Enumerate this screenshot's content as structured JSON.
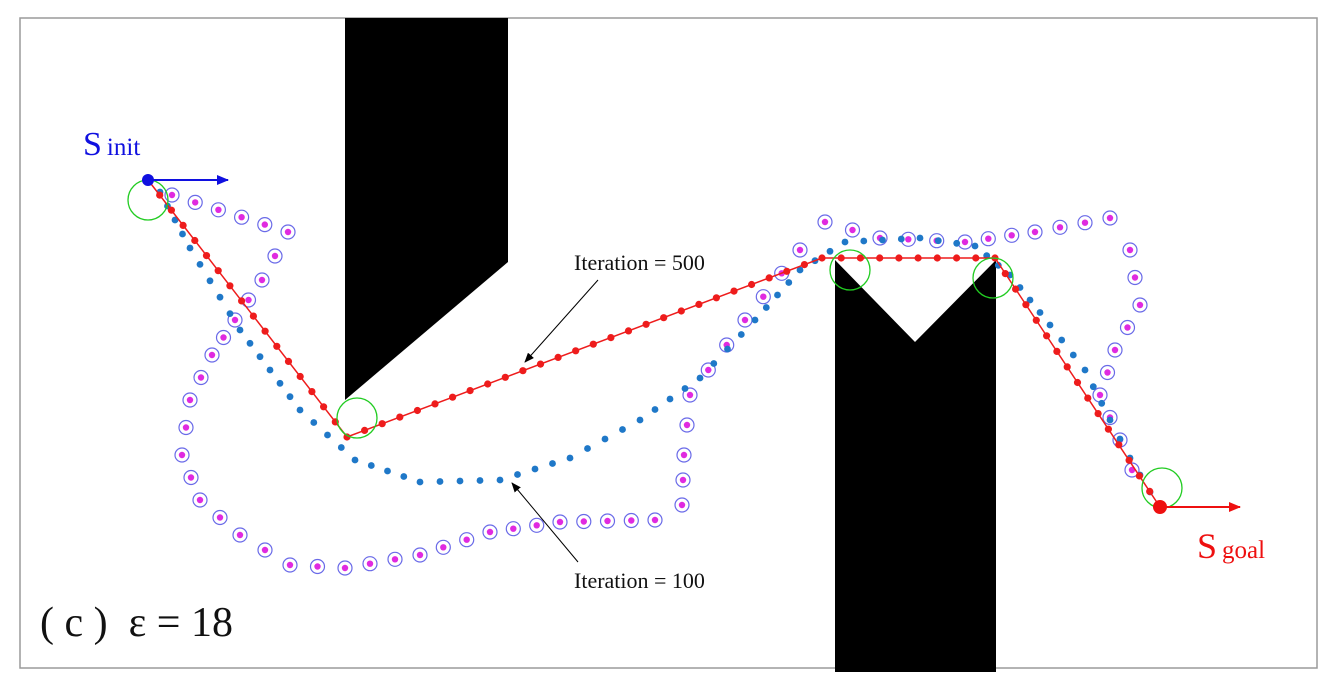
{
  "labels": {
    "start_main": "S",
    "start_sub": "init",
    "goal_main": "S",
    "goal_sub": "goal",
    "iter_high": "Iteration = 500",
    "iter_low": "Iteration = 100",
    "caption": "( c )  ε = 18"
  },
  "colors": {
    "frame": "#9a9a9a",
    "obstacle": "#000000",
    "path_final": "#ee1c1c",
    "path_early": "#1f78c8",
    "samples": "#e02ae0",
    "sample_ring": "#6a6ae8",
    "waypoint_ring": "#22cc22",
    "start": "#1010e0",
    "goal": "#ee1010"
  },
  "icons": {
    "start_heading": "arrow-right-icon",
    "goal_heading": "arrow-right-icon"
  }
}
